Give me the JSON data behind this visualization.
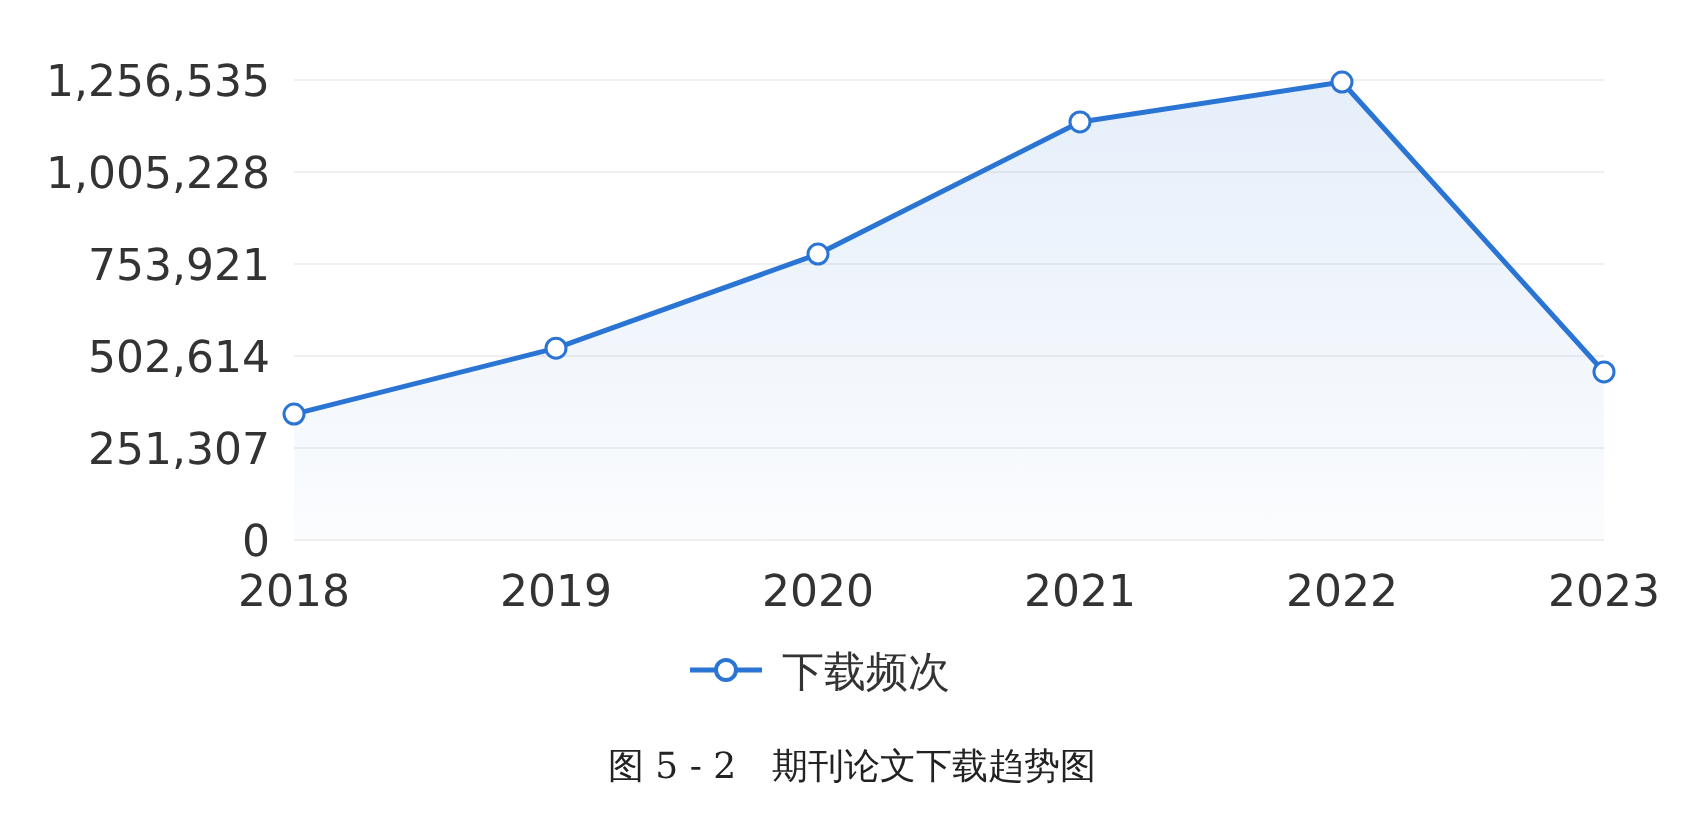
{
  "chart_data": {
    "type": "area",
    "categories": [
      "2018",
      "2019",
      "2020",
      "2021",
      "2022",
      "2023"
    ],
    "series": [
      {
        "name": "下载频次",
        "color": "#2a74d4",
        "values": [
          344000,
          524000,
          781000,
          1142000,
          1251000,
          459000
        ]
      }
    ],
    "ylim": [
      0,
      1256535
    ],
    "yticks": [
      0,
      {
        "value": 251307,
        "label": "251,307"
      },
      {
        "value": 502614,
        "label": "502,614"
      },
      {
        "value": 753921,
        "label": "753,921"
      },
      {
        "value": 1005228,
        "label": "1,005,228"
      },
      {
        "value": 1256535,
        "label": "1,256,535"
      }
    ],
    "grid": "y",
    "legend": "bottom",
    "marker": "circle",
    "line_style": "solid",
    "annotations": [
      "图 5 - 2　期刊论文下载趋势图"
    ]
  }
}
